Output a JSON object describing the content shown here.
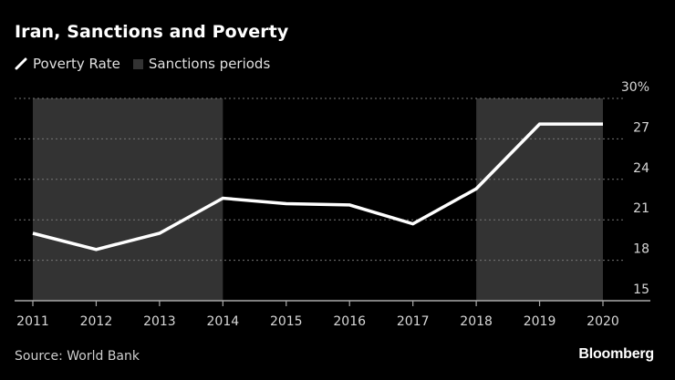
{
  "chart_data": {
    "type": "line",
    "title": "Iran, Sanctions and Poverty",
    "xlabel": "",
    "ylabel": "",
    "x": [
      "2011",
      "2012",
      "2013",
      "2014",
      "2015",
      "2016",
      "2017",
      "2018",
      "2019",
      "2020"
    ],
    "series": [
      {
        "name": "Poverty Rate",
        "color": "#ffffff",
        "values": [
          20.0,
          18.8,
          20.0,
          22.6,
          22.2,
          22.1,
          20.7,
          23.3,
          28.1,
          28.1
        ]
      }
    ],
    "shaded_regions": [
      {
        "name": "Sanctions periods",
        "from": "2011",
        "to": "2014",
        "color": "#333333"
      },
      {
        "name": "Sanctions periods",
        "from": "2018",
        "to": "2020",
        "color": "#333333"
      }
    ],
    "ylim": [
      15,
      30
    ],
    "yticks": [
      15,
      18,
      21,
      24,
      27,
      30
    ],
    "ytick_labels": [
      "15",
      "18",
      "21",
      "24",
      "27",
      "30%"
    ],
    "grid": true,
    "legend": [
      {
        "label": "Poverty Rate",
        "kind": "line"
      },
      {
        "label": "Sanctions periods",
        "kind": "box"
      }
    ],
    "legend_position": "top-left",
    "source": "Source: World Bank",
    "brand": "Bloomberg"
  }
}
